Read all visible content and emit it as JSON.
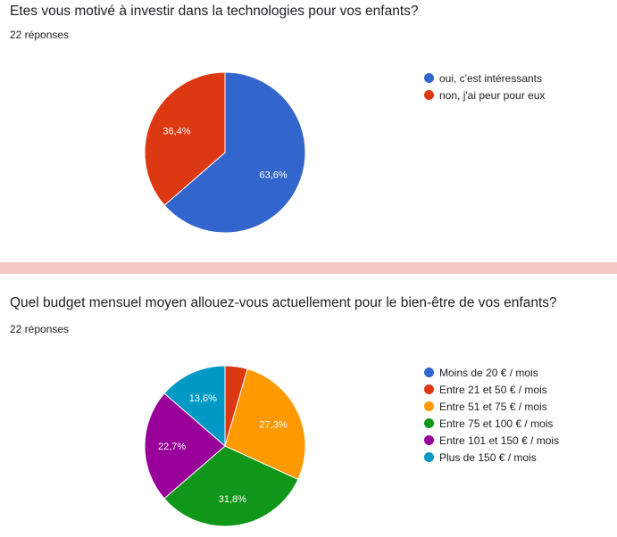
{
  "questions": [
    {
      "title": "Etes vous motivé à investir dans la technologies pour vos enfants?",
      "responses": "22 réponses"
    },
    {
      "title": "Quel budget mensuel moyen allouez-vous actuellement pour le bien-être de vos enfants?",
      "responses": "22 réponses"
    }
  ],
  "chart_data": [
    {
      "type": "pie",
      "slices": [
        {
          "label": "oui, c'est intéressants",
          "value": 63.6,
          "display": "63,6%",
          "color": "#3366cc"
        },
        {
          "label": "non, j'ai peur pour eux",
          "value": 36.4,
          "display": "36,4%",
          "color": "#dc3912"
        }
      ],
      "legend": "right"
    },
    {
      "type": "pie",
      "slices": [
        {
          "label": "Moins de 20 € / mois",
          "value": 0,
          "display": "",
          "color": "#3366cc"
        },
        {
          "label": "Entre 21 et 50 € / mois",
          "value": 4.5,
          "display": "",
          "color": "#dc3912"
        },
        {
          "label": "Entre 51 et 75 € / mois",
          "value": 27.3,
          "display": "27,3%",
          "color": "#ff9900"
        },
        {
          "label": "Entre 75 et 100 € / mois",
          "value": 31.8,
          "display": "31,8%",
          "color": "#109618"
        },
        {
          "label": "Entre 101 et 150 € / mois",
          "value": 22.7,
          "display": "22,7%",
          "color": "#990099"
        },
        {
          "label": "Plus de 150 € / mois",
          "value": 13.6,
          "display": "13,6%",
          "color": "#0099c6"
        }
      ],
      "legend": "right"
    }
  ]
}
